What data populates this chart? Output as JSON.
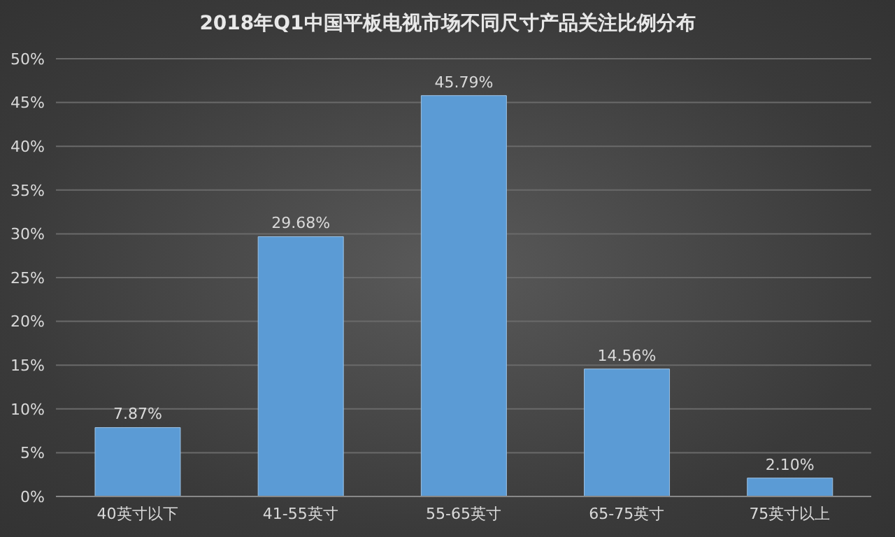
{
  "chart_data": {
    "type": "bar",
    "title": "2018年Q1中国平板电视市场不同尺寸产品关注比例分布",
    "categories": [
      "40英寸以下",
      "41-55英寸",
      "55-65英寸",
      "65-75英寸",
      "75英寸以上"
    ],
    "values": [
      7.87,
      29.68,
      45.79,
      14.56,
      2.1
    ],
    "value_labels": [
      "7.87%",
      "29.68%",
      "45.79%",
      "14.56%",
      "2.10%"
    ],
    "color": "#5b9bd5",
    "ylim": [
      0,
      50
    ],
    "yticks": [
      {
        "value": 0,
        "label": "0%"
      },
      {
        "value": 5,
        "label": "5%"
      },
      {
        "value": 10,
        "label": "10%"
      },
      {
        "value": 15,
        "label": "15%"
      },
      {
        "value": 20,
        "label": "20%"
      },
      {
        "value": 25,
        "label": "25%"
      },
      {
        "value": 30,
        "label": "30%"
      },
      {
        "value": 35,
        "label": "35%"
      },
      {
        "value": 40,
        "label": "40%"
      },
      {
        "value": 45,
        "label": "45%"
      },
      {
        "value": 50,
        "label": "50%"
      }
    ],
    "grid": "y",
    "legend": false
  }
}
